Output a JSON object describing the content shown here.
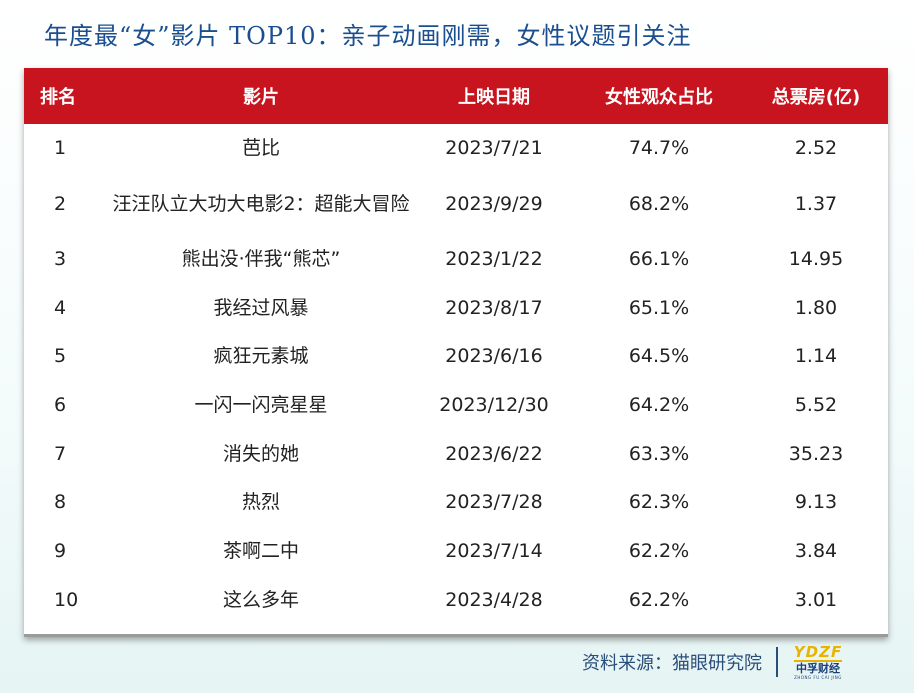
{
  "title": "年度最“女”影片 TOP10：亲子动画刚需，女性议题引关注",
  "table": {
    "headers": [
      "排名",
      "影片",
      "上映日期",
      "女性观众占比",
      "总票房(亿)"
    ],
    "rows": [
      {
        "rank": "1",
        "film": "芭比",
        "date": "2023/7/21",
        "female_share": "74.7%",
        "box_office": "2.52"
      },
      {
        "rank": "2",
        "film": "汪汪队立大功大电影2：超能大冒险",
        "date": "2023/9/29",
        "female_share": "68.2%",
        "box_office": "1.37"
      },
      {
        "rank": "3",
        "film": "熊出没·伴我“熊芯”",
        "date": "2023/1/22",
        "female_share": "66.1%",
        "box_office": "14.95"
      },
      {
        "rank": "4",
        "film": "我经过风暴",
        "date": "2023/8/17",
        "female_share": "65.1%",
        "box_office": "1.80"
      },
      {
        "rank": "5",
        "film": "疯狂元素城",
        "date": "2023/6/16",
        "female_share": "64.5%",
        "box_office": "1.14"
      },
      {
        "rank": "6",
        "film": "一闪一闪亮星星",
        "date": "2023/12/30",
        "female_share": "64.2%",
        "box_office": "5.52"
      },
      {
        "rank": "7",
        "film": "消失的她",
        "date": "2023/6/22",
        "female_share": "63.3%",
        "box_office": "35.23"
      },
      {
        "rank": "8",
        "film": "热烈",
        "date": "2023/7/28",
        "female_share": "62.3%",
        "box_office": "9.13"
      },
      {
        "rank": "9",
        "film": "茶啊二中",
        "date": "2023/7/14",
        "female_share": "62.2%",
        "box_office": "3.84"
      },
      {
        "rank": "10",
        "film": "这么多年",
        "date": "2023/4/28",
        "female_share": "62.2%",
        "box_office": "3.01"
      }
    ]
  },
  "footer": {
    "source": "资料来源：猫眼研究院",
    "logo_mark": "YDZF",
    "logo_cn": "中孚财经",
    "logo_en": "ZHONG FU CAI JING"
  },
  "colors": {
    "title": "#1a4e8f",
    "header_bg": "#c8141e",
    "header_text": "#ffffff",
    "source_text": "#2a4e7a",
    "logo_accent": "#e8b400"
  }
}
